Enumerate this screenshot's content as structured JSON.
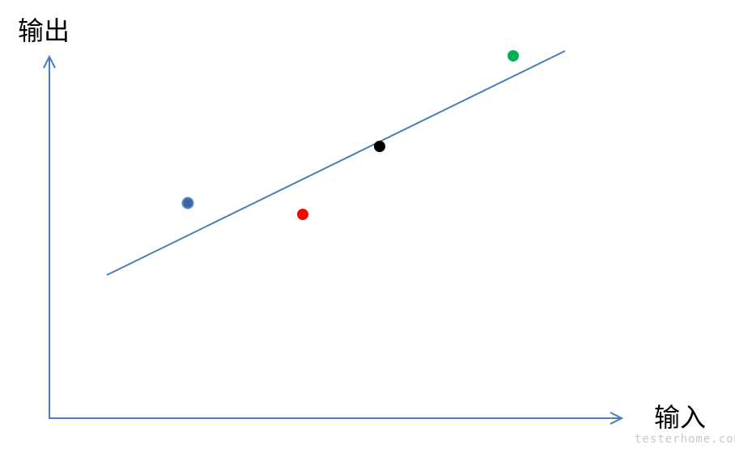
{
  "y_axis_label": "输出",
  "x_axis_label": "输入",
  "watermark": "testerhome.com"
}
